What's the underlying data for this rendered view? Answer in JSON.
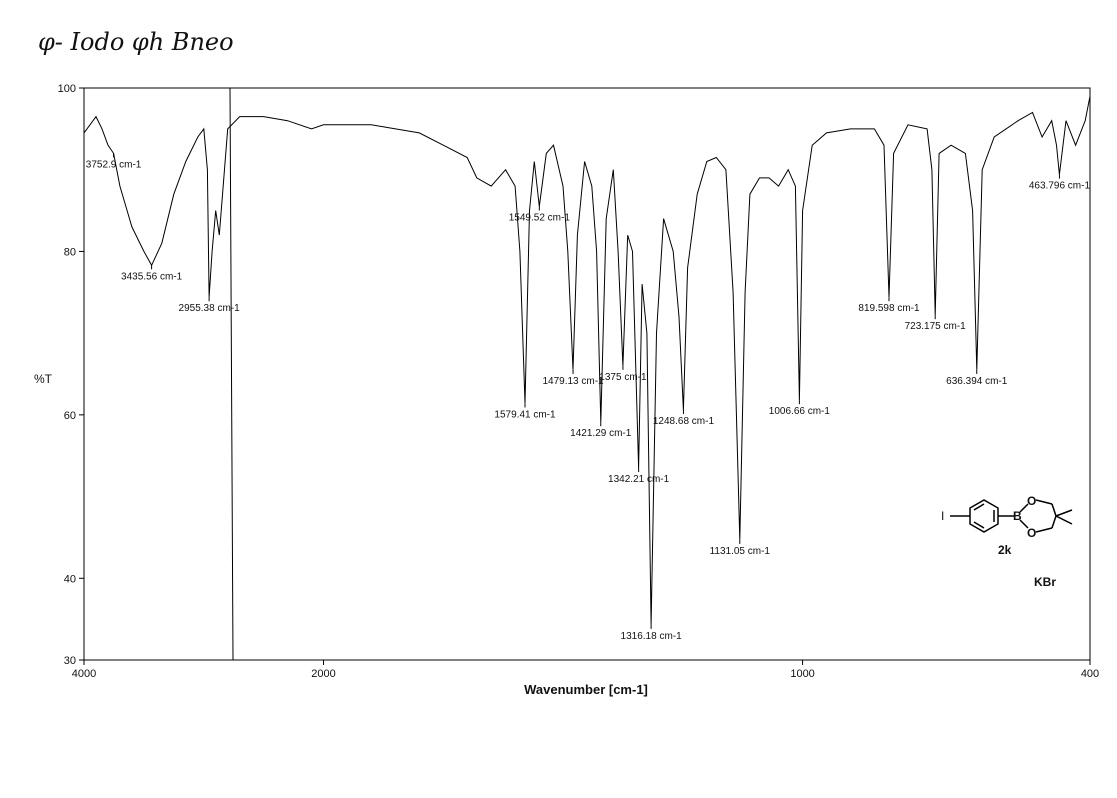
{
  "chart_data": {
    "type": "line",
    "title": "φ- Iodo φh Bneo",
    "xlabel": "Wavenumber [cm-1]",
    "ylabel": "%T",
    "xlim": [
      4000,
      400
    ],
    "ylim": [
      30,
      100
    ],
    "xticks": [
      4000,
      2000,
      1000,
      400
    ],
    "yticks": [
      30,
      40,
      60,
      80,
      100
    ],
    "grid": false,
    "series": [
      {
        "color": "#000000",
        "x": [
          4000,
          3950,
          3900,
          3850,
          3800,
          3752.9,
          3700,
          3600,
          3500,
          3435.56,
          3350,
          3250,
          3150,
          3050,
          3000,
          2970,
          2955.38,
          2930,
          2900,
          2870,
          2800,
          2700,
          2500,
          2300,
          2100,
          2000,
          1900,
          1800,
          1750,
          1700,
          1680,
          1650,
          1620,
          1600,
          1590,
          1579.41,
          1570,
          1560,
          1549.52,
          1535,
          1520,
          1500,
          1490,
          1479.13,
          1470,
          1455,
          1440,
          1430,
          1421.29,
          1410,
          1395,
          1385,
          1375,
          1365,
          1355,
          1342.21,
          1335,
          1325,
          1316.18,
          1305,
          1290,
          1270,
          1258,
          1248.68,
          1240,
          1220,
          1200,
          1180,
          1160,
          1145,
          1131.05,
          1120,
          1110,
          1090,
          1070,
          1050,
          1030,
          1015,
          1006.66,
          1000,
          980,
          950,
          900,
          850,
          830,
          819.598,
          810,
          780,
          740,
          730,
          723.175,
          715,
          690,
          660,
          645,
          636.394,
          625,
          600,
          550,
          520,
          500,
          480,
          470,
          463.796,
          450,
          430,
          410,
          400
        ],
        "values": [
          94.5,
          95.5,
          96.5,
          95,
          93,
          92,
          88,
          83,
          80,
          78.3,
          81,
          87,
          91,
          94,
          95,
          90,
          74.4,
          80,
          85,
          82,
          95,
          96.5,
          96.5,
          96,
          95,
          95.5,
          95.5,
          94.5,
          93,
          91.5,
          89,
          88,
          90,
          88,
          80,
          61.4,
          85,
          91,
          85.5,
          92,
          93,
          88,
          80,
          65.5,
          82,
          91,
          88,
          80,
          59.1,
          84,
          90,
          80,
          66,
          82,
          80,
          53.5,
          76,
          70,
          34.3,
          70,
          84,
          80,
          72,
          60.6,
          78,
          87,
          91,
          91.5,
          90,
          75,
          44.7,
          75,
          87,
          89,
          89,
          88,
          90,
          88,
          61.8,
          85,
          93,
          94.5,
          95,
          95,
          93,
          74.4,
          92,
          95.5,
          95,
          90,
          72.2,
          92,
          93,
          92,
          85,
          65.5,
          90,
          94,
          96,
          97,
          94,
          96,
          93,
          89.4,
          96,
          93,
          96,
          99
        ]
      }
    ],
    "peaks": [
      {
        "label": "3752.9 cm-1",
        "x": 3752.9,
        "y": 92
      },
      {
        "label": "3435.56 cm-1",
        "x": 3435.56,
        "y": 78.3
      },
      {
        "label": "2955.38 cm-1",
        "x": 2955.38,
        "y": 74.4
      },
      {
        "label": "1579.41 cm-1",
        "x": 1579.41,
        "y": 61.4
      },
      {
        "label": "1549.52 cm-1",
        "x": 1549.52,
        "y": 85.5
      },
      {
        "label": "1479.13 cm-1",
        "x": 1479.13,
        "y": 65.5
      },
      {
        "label": "1421.29 cm-1",
        "x": 1421.29,
        "y": 59.1
      },
      {
        "label": "1375 cm-1",
        "x": 1375,
        "y": 66
      },
      {
        "label": "1342.21 cm-1",
        "x": 1342.21,
        "y": 53.5
      },
      {
        "label": "1316.18 cm-1",
        "x": 1316.18,
        "y": 34.3
      },
      {
        "label": "1248.68 cm-1",
        "x": 1248.68,
        "y": 60.6
      },
      {
        "label": "1131.05 cm-1",
        "x": 1131.05,
        "y": 44.7
      },
      {
        "label": "1006.66 cm-1",
        "x": 1006.66,
        "y": 61.8
      },
      {
        "label": "819.598 cm-1",
        "x": 819.598,
        "y": 74.4
      },
      {
        "label": "723.175 cm-1",
        "x": 723.175,
        "y": 72.2
      },
      {
        "label": "636.394 cm-1",
        "x": 636.394,
        "y": 65.5
      },
      {
        "label": "463.796 cm-1",
        "x": 463.796,
        "y": 89.4
      }
    ],
    "structure": {
      "iodine": "I",
      "boron": "B",
      "oxygen_top": "O",
      "oxygen_bottom": "O",
      "compound": "2k"
    },
    "medium": "KBr"
  }
}
